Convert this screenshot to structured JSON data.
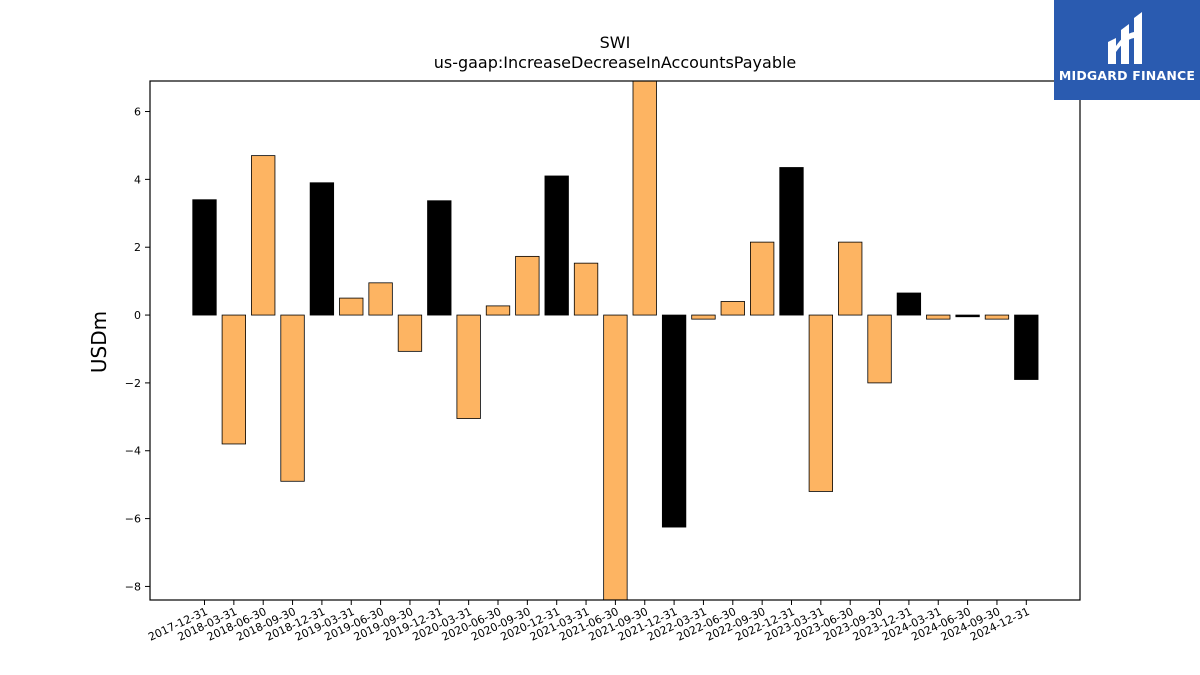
{
  "chart_data": {
    "type": "bar",
    "title": "SWI",
    "subtitle": "us-gaap:IncreaseDecreaseInAccountsPayable",
    "ylabel": "USDm",
    "xlabel": "",
    "ylim": [
      -8.4,
      6.9
    ],
    "yticks": [
      -8,
      -6,
      -4,
      -2,
      0,
      2,
      4,
      6
    ],
    "grid": false,
    "categories": [
      "2017-12-31",
      "2018-03-31",
      "2018-06-30",
      "2018-09-30",
      "2018-12-31",
      "2019-03-31",
      "2019-06-30",
      "2019-09-30",
      "2019-12-31",
      "2020-03-31",
      "2020-06-30",
      "2020-09-30",
      "2020-12-31",
      "2021-03-31",
      "2021-06-30",
      "2021-09-30",
      "2021-12-31",
      "2022-03-31",
      "2022-06-30",
      "2022-09-30",
      "2022-12-31",
      "2023-03-31",
      "2023-06-30",
      "2023-09-30",
      "2023-12-31",
      "2024-03-31",
      "2024-06-30",
      "2024-09-30",
      "2024-12-31"
    ],
    "values": [
      3.4,
      -3.8,
      4.7,
      -4.9,
      3.9,
      0.5,
      0.95,
      -1.07,
      3.37,
      -3.05,
      0.27,
      1.73,
      4.1,
      1.53,
      -8.6,
      7.0,
      -6.25,
      -0.12,
      0.4,
      2.15,
      4.35,
      -5.2,
      2.15,
      -2.0,
      0.65,
      -0.12,
      -0.05,
      -0.12,
      -1.9
    ],
    "bar_colors": [
      "#000000",
      "#fdb462",
      "#fdb462",
      "#fdb462",
      "#000000",
      "#fdb462",
      "#fdb462",
      "#fdb462",
      "#000000",
      "#fdb462",
      "#fdb462",
      "#fdb462",
      "#000000",
      "#fdb462",
      "#fdb462",
      "#fdb462",
      "#000000",
      "#fdb462",
      "#fdb462",
      "#fdb462",
      "#000000",
      "#fdb462",
      "#fdb462",
      "#fdb462",
      "#000000",
      "#fdb462",
      "#000000",
      "#fdb462",
      "#000000"
    ]
  },
  "logo": {
    "text": "MIDGARD FINANCE",
    "background": "#2a5bb0"
  }
}
